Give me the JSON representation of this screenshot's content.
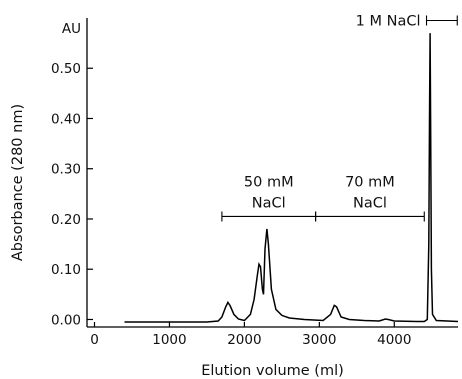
{
  "chart_data": {
    "type": "line",
    "xlabel": "Elution volume (ml)",
    "ylabel": "Absorbance (280 nm)",
    "yunit": "AU",
    "xlim": [
      -100,
      4850
    ],
    "ylim": [
      -0.015,
      0.6
    ],
    "xticks": [
      0,
      1000,
      2000,
      3000,
      4000
    ],
    "yticks": [
      0.0,
      0.1,
      0.2,
      0.3,
      0.4,
      0.5
    ],
    "xtick_labels": [
      "0",
      "1000",
      "2000",
      "3000",
      "4000"
    ],
    "ytick_labels": [
      "0.00",
      "0.10",
      "0.20",
      "0.30",
      "0.40",
      "0.50"
    ],
    "grid": false,
    "series": [
      {
        "points": [
          [
            400,
            -0.005
          ],
          [
            1000,
            -0.005
          ],
          [
            1500,
            -0.005
          ],
          [
            1650,
            -0.003
          ],
          [
            1700,
            0.005
          ],
          [
            1750,
            0.025
          ],
          [
            1780,
            0.034
          ],
          [
            1810,
            0.027
          ],
          [
            1860,
            0.01
          ],
          [
            1920,
            0.001
          ],
          [
            2000,
            -0.002
          ],
          [
            2080,
            0.01
          ],
          [
            2130,
            0.04
          ],
          [
            2175,
            0.09
          ],
          [
            2195,
            0.11
          ],
          [
            2215,
            0.105
          ],
          [
            2240,
            0.06
          ],
          [
            2255,
            0.05
          ],
          [
            2275,
            0.14
          ],
          [
            2300,
            0.18
          ],
          [
            2320,
            0.15
          ],
          [
            2360,
            0.06
          ],
          [
            2420,
            0.02
          ],
          [
            2500,
            0.008
          ],
          [
            2600,
            0.003
          ],
          [
            2800,
            0.0
          ],
          [
            3050,
            -0.002
          ],
          [
            3150,
            0.01
          ],
          [
            3200,
            0.028
          ],
          [
            3230,
            0.025
          ],
          [
            3290,
            0.005
          ],
          [
            3400,
            0.0
          ],
          [
            3600,
            -0.002
          ],
          [
            3800,
            -0.003
          ],
          [
            3880,
            0.001
          ],
          [
            3920,
            0.0
          ],
          [
            4000,
            -0.003
          ],
          [
            4300,
            -0.004
          ],
          [
            4400,
            -0.004
          ],
          [
            4440,
            0.0
          ],
          [
            4460,
            0.15
          ],
          [
            4470,
            0.4
          ],
          [
            4478,
            0.57
          ],
          [
            4485,
            0.4
          ],
          [
            4495,
            0.1
          ],
          [
            4510,
            0.01
          ],
          [
            4560,
            -0.002
          ],
          [
            4850,
            -0.004
          ]
        ]
      }
    ],
    "annotations": [
      {
        "lines": [
          "50 mM",
          "NaCl"
        ],
        "x_range": [
          1700,
          2950
        ],
        "y": 0.205
      },
      {
        "lines": [
          "70 mM",
          "NaCl"
        ],
        "x_range": [
          2950,
          4400
        ],
        "y": 0.205
      },
      {
        "lines": [
          "1 M NaCl"
        ],
        "x_range": [
          4430,
          4840
        ],
        "y": 0.595
      }
    ]
  }
}
